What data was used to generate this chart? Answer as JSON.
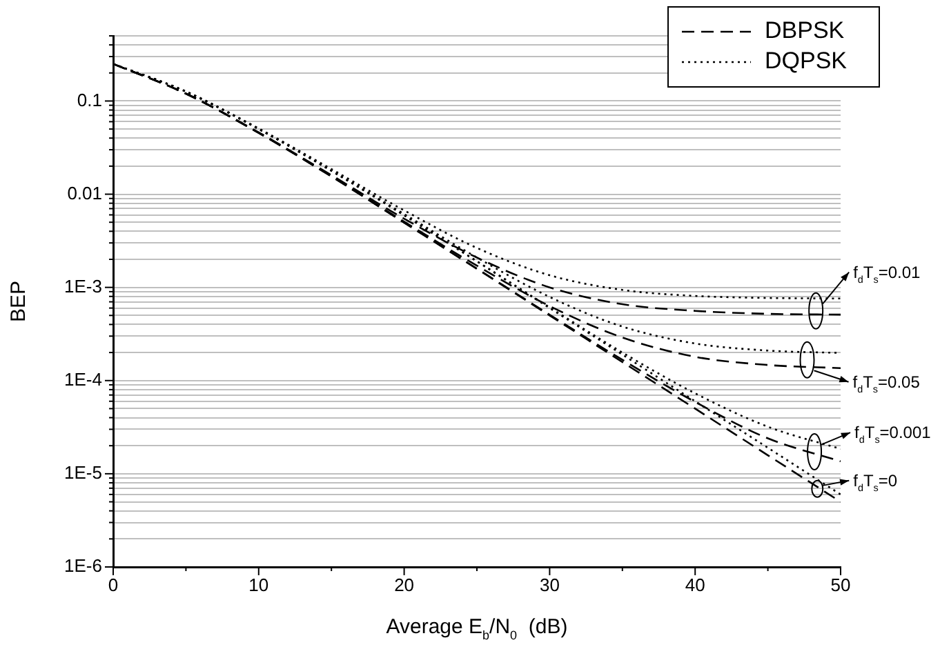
{
  "chart_data": {
    "type": "line",
    "xlabel": "Average E$_{b}$/N$_{0}$  (dB)",
    "ylabel": "BEP",
    "x": [
      0,
      5,
      10,
      15,
      20,
      25,
      30,
      35,
      40,
      45,
      50
    ],
    "xlim": [
      0,
      50
    ],
    "xticks": [
      0,
      {
        "value": 5,
        "label": null
      },
      10,
      {
        "value": 15,
        "label": null
      },
      20,
      {
        "value": 25,
        "label": null
      },
      30,
      {
        "value": 35,
        "label": null
      },
      40,
      {
        "value": 45,
        "label": null
      },
      50
    ],
    "ylim": [
      1e-06,
      0.5
    ],
    "log": "y",
    "yticks": [
      {
        "value": 1e-06,
        "label": "1E-6"
      },
      {
        "value": 2e-06,
        "label": null
      },
      {
        "value": 3e-06,
        "label": null
      },
      {
        "value": 4e-06,
        "label": null
      },
      {
        "value": 5e-06,
        "label": null
      },
      {
        "value": 6e-06,
        "label": null
      },
      {
        "value": 7e-06,
        "label": null
      },
      {
        "value": 8e-06,
        "label": null
      },
      {
        "value": 9e-06,
        "label": null
      },
      {
        "value": 1e-05,
        "label": "1E-5"
      },
      {
        "value": 2e-05,
        "label": null
      },
      {
        "value": 3e-05,
        "label": null
      },
      {
        "value": 4e-05,
        "label": null
      },
      {
        "value": 5e-05,
        "label": null
      },
      {
        "value": 6e-05,
        "label": null
      },
      {
        "value": 7e-05,
        "label": null
      },
      {
        "value": 8e-05,
        "label": null
      },
      {
        "value": 9e-05,
        "label": null
      },
      {
        "value": 0.0001,
        "label": "1E-4"
      },
      {
        "value": 0.0002,
        "label": null
      },
      {
        "value": 0.0003,
        "label": null
      },
      {
        "value": 0.0004,
        "label": null
      },
      {
        "value": 0.0005,
        "label": null
      },
      {
        "value": 0.0006,
        "label": null
      },
      {
        "value": 0.0007,
        "label": null
      },
      {
        "value": 0.0008,
        "label": null
      },
      {
        "value": 0.0009,
        "label": null
      },
      {
        "value": 0.001,
        "label": "1E-3"
      },
      {
        "value": 0.002,
        "label": null
      },
      {
        "value": 0.003,
        "label": null
      },
      {
        "value": 0.004,
        "label": null
      },
      {
        "value": 0.005,
        "label": null
      },
      {
        "value": 0.006,
        "label": null
      },
      {
        "value": 0.007,
        "label": null
      },
      {
        "value": 0.008,
        "label": null
      },
      {
        "value": 0.009,
        "label": null
      },
      0.01,
      {
        "value": 0.02,
        "label": null
      },
      {
        "value": 0.03,
        "label": null
      },
      {
        "value": 0.04,
        "label": null
      },
      {
        "value": 0.05,
        "label": null
      },
      {
        "value": 0.06,
        "label": null
      },
      {
        "value": 0.07,
        "label": null
      },
      {
        "value": 0.08,
        "label": null
      },
      {
        "value": 0.09,
        "label": null
      },
      0.1,
      {
        "value": 0.2,
        "label": null
      },
      {
        "value": 0.3,
        "label": null
      },
      {
        "value": 0.4,
        "label": null
      },
      {
        "value": 0.5,
        "label": null
      }
    ],
    "grid": "y",
    "legend": "top right",
    "marker": "none",
    "series": [
      {
        "name": "DBPSK",
        "color": "#000000",
        "line_style": "dashed",
        "values": [
          0.25,
          0.12,
          0.0455,
          0.0155,
          0.00495,
          0.00158,
          0.0005,
          0.000158,
          5e-05,
          1.58e-05,
          5e-06
        ]
      },
      {
        "name": "DQPSK",
        "color": "#000000",
        "line_style": "dotted",
        "values": [
          0.25,
          0.126,
          0.05,
          0.0178,
          0.00594,
          0.0019,
          0.0006,
          0.00019,
          6e-05,
          1.9e-05,
          6e-06
        ]
      },
      {
        "color": "#000000",
        "line_style": "dashed",
        "values": [
          0.25,
          0.12,
          0.0455,
          0.0155,
          0.00496,
          0.00159,
          0.000509,
          0.000167,
          5.9e-05,
          2.4e-05,
          1.36e-05
        ]
      },
      {
        "color": "#000000",
        "line_style": "dotted",
        "values": [
          0.25,
          0.126,
          0.05,
          0.0178,
          0.00595,
          0.00191,
          0.00061,
          0.0002,
          7.3e-05,
          3.2e-05,
          1.85e-05
        ]
      },
      {
        "color": "#000000",
        "line_style": "dashed",
        "values": [
          0.25,
          0.12,
          0.0456,
          0.0156,
          0.00508,
          0.00171,
          0.00063,
          0.00029,
          0.00018,
          0.000147,
          0.000136
        ]
      },
      {
        "color": "#000000",
        "line_style": "dotted",
        "values": [
          0.25,
          0.126,
          0.0502,
          0.018,
          0.00613,
          0.00209,
          0.00079,
          0.00038,
          0.00025,
          0.00021,
          0.000198
        ]
      },
      {
        "color": "#000000",
        "line_style": "dashed",
        "values": [
          0.25,
          0.12,
          0.046,
          0.016,
          0.00546,
          0.00209,
          0.001,
          0.00066,
          0.00056,
          0.00052,
          0.00051
        ]
      },
      {
        "color": "#000000",
        "line_style": "dotted",
        "values": [
          0.25,
          0.127,
          0.0508,
          0.0186,
          0.0067,
          0.00265,
          0.00135,
          0.00094,
          0.00081,
          0.00077,
          0.00076
        ]
      }
    ],
    "annotations": [
      {
        "text": "f$_{d}$T$_{s}$=0.01",
        "x": 48.3,
        "y": 0.00056
      },
      {
        "text": "f$_{d}$T$_{s}$=0.05",
        "x": 47.7,
        "y": 0.000167
      },
      {
        "text": "f$_{d}$T$_{s}$=0.001",
        "x": 48.2,
        "y": 1.72e-05
      },
      {
        "text": "f$_{d}$T$_{s}$=0",
        "x": 48.4,
        "y": 6.9e-06
      }
    ]
  }
}
